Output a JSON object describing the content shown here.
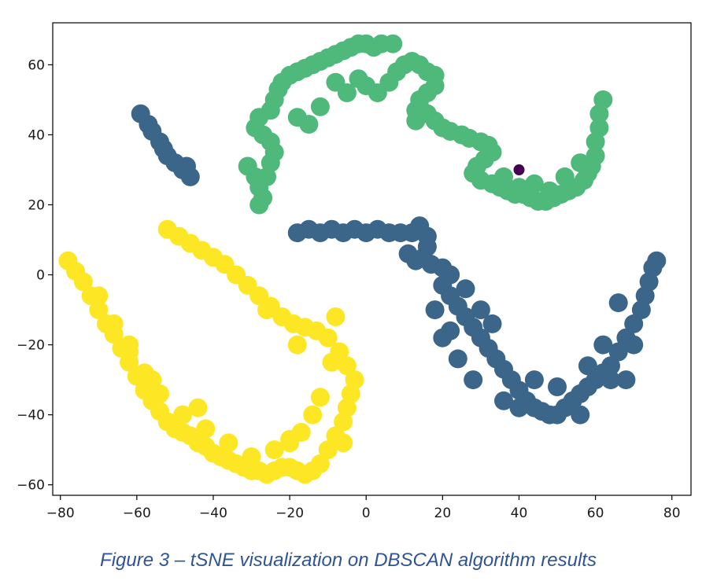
{
  "caption": "Figure 3 – tSNE visualization on DBSCAN algorithm results",
  "chart_data": {
    "type": "scatter",
    "title": "",
    "xlabel": "",
    "ylabel": "",
    "xlim": [
      -82,
      85
    ],
    "ylim": [
      -63,
      72
    ],
    "xticks": [
      -80,
      -60,
      -40,
      -20,
      0,
      20,
      40,
      60,
      80
    ],
    "yticks": [
      -60,
      -40,
      -20,
      0,
      20,
      40,
      60
    ],
    "grid": false,
    "legend": "none",
    "series": [
      {
        "color": "#fde725",
        "points": [
          [
            -78,
            4
          ],
          [
            -76,
            1
          ],
          [
            -74,
            -2
          ],
          [
            -72,
            -6
          ],
          [
            -70,
            -10
          ],
          [
            -68,
            -14
          ],
          [
            -66,
            -17
          ],
          [
            -64,
            -21
          ],
          [
            -62,
            -25
          ],
          [
            -60,
            -29
          ],
          [
            -58,
            -33
          ],
          [
            -56,
            -36
          ],
          [
            -54,
            -39
          ],
          [
            -52,
            -42
          ],
          [
            -50,
            -44
          ],
          [
            -48,
            -45
          ],
          [
            -46,
            -46
          ],
          [
            -44,
            -48
          ],
          [
            -42,
            -49
          ],
          [
            -40,
            -51
          ],
          [
            -38,
            -52
          ],
          [
            -36,
            -53
          ],
          [
            -34,
            -54
          ],
          [
            -32,
            -55
          ],
          [
            -30,
            -56
          ],
          [
            -28,
            -56
          ],
          [
            -26,
            -57
          ],
          [
            -24,
            -56
          ],
          [
            -22,
            -55
          ],
          [
            -20,
            -55
          ],
          [
            -18,
            -56
          ],
          [
            -16,
            -57
          ],
          [
            -14,
            -56
          ],
          [
            -12,
            -54
          ],
          [
            -10,
            -50
          ],
          [
            -8,
            -46
          ],
          [
            -6,
            -42
          ],
          [
            -5,
            -38
          ],
          [
            -4,
            -34
          ],
          [
            -3,
            -30
          ],
          [
            -5,
            -26
          ],
          [
            -7,
            -22
          ],
          [
            -10,
            -18
          ],
          [
            -13,
            -16
          ],
          [
            -16,
            -15
          ],
          [
            -19,
            -14
          ],
          [
            -22,
            -12
          ],
          [
            -25,
            -9
          ],
          [
            -28,
            -6
          ],
          [
            -31,
            -3
          ],
          [
            -34,
            0
          ],
          [
            -37,
            3
          ],
          [
            -40,
            5
          ],
          [
            -43,
            7
          ],
          [
            -46,
            9
          ],
          [
            -49,
            11
          ],
          [
            -52,
            13
          ],
          [
            -14,
            -40
          ],
          [
            -20,
            -48
          ],
          [
            -17,
            -45
          ],
          [
            -24,
            -50
          ],
          [
            -30,
            -52
          ],
          [
            -36,
            -48
          ],
          [
            -42,
            -44
          ],
          [
            -48,
            -40
          ],
          [
            -54,
            -34
          ],
          [
            -58,
            -28
          ],
          [
            -62,
            -22
          ],
          [
            -66,
            -14
          ],
          [
            -70,
            -6
          ],
          [
            -20,
            -47
          ],
          [
            -8,
            -12
          ],
          [
            -9,
            -25
          ],
          [
            -12,
            -35
          ],
          [
            -6,
            -48
          ],
          [
            -26,
            -10
          ],
          [
            -18,
            -20
          ],
          [
            -44,
            -38
          ],
          [
            -62,
            -20
          ],
          [
            -56,
            -30
          ]
        ]
      },
      {
        "color": "#3b668a",
        "points": [
          [
            -59,
            46
          ],
          [
            -57,
            43
          ],
          [
            -56,
            41
          ],
          [
            -54,
            38
          ],
          [
            -53,
            36
          ],
          [
            -52,
            34
          ],
          [
            -50,
            32
          ],
          [
            -48,
            30
          ],
          [
            -46,
            28
          ],
          [
            -47,
            31
          ],
          [
            -18,
            12
          ],
          [
            -15,
            13
          ],
          [
            -12,
            12
          ],
          [
            -9,
            13
          ],
          [
            -6,
            12
          ],
          [
            -3,
            13
          ],
          [
            0,
            12
          ],
          [
            3,
            13
          ],
          [
            6,
            12
          ],
          [
            9,
            12
          ],
          [
            12,
            12
          ],
          [
            14,
            14
          ],
          [
            16,
            11
          ],
          [
            16,
            8
          ],
          [
            15,
            5
          ],
          [
            13,
            4
          ],
          [
            11,
            6
          ],
          [
            17,
            3
          ],
          [
            20,
            2
          ],
          [
            22,
            0
          ],
          [
            20,
            -3
          ],
          [
            22,
            -6
          ],
          [
            24,
            -9
          ],
          [
            26,
            -12
          ],
          [
            28,
            -15
          ],
          [
            30,
            -18
          ],
          [
            32,
            -21
          ],
          [
            34,
            -24
          ],
          [
            36,
            -27
          ],
          [
            38,
            -30
          ],
          [
            40,
            -33
          ],
          [
            42,
            -36
          ],
          [
            44,
            -38
          ],
          [
            46,
            -39
          ],
          [
            48,
            -40
          ],
          [
            50,
            -40
          ],
          [
            52,
            -38
          ],
          [
            54,
            -36
          ],
          [
            56,
            -34
          ],
          [
            58,
            -32
          ],
          [
            60,
            -30
          ],
          [
            62,
            -28
          ],
          [
            64,
            -26
          ],
          [
            66,
            -22
          ],
          [
            68,
            -18
          ],
          [
            70,
            -14
          ],
          [
            72,
            -10
          ],
          [
            73,
            -6
          ],
          [
            74,
            -2
          ],
          [
            75,
            2
          ],
          [
            76,
            4
          ],
          [
            68,
            -30
          ],
          [
            64,
            -30
          ],
          [
            58,
            -26
          ],
          [
            50,
            -32
          ],
          [
            44,
            -30
          ],
          [
            36,
            -36
          ],
          [
            28,
            -30
          ],
          [
            24,
            -24
          ],
          [
            20,
            -18
          ],
          [
            18,
            -10
          ],
          [
            22,
            -16
          ],
          [
            30,
            -10
          ],
          [
            33,
            -14
          ],
          [
            26,
            -4
          ],
          [
            40,
            -38
          ],
          [
            56,
            -40
          ],
          [
            62,
            -20
          ],
          [
            70,
            -20
          ],
          [
            66,
            -8
          ]
        ]
      },
      {
        "color": "#4fb87b",
        "points": [
          [
            -31,
            31
          ],
          [
            -29,
            28
          ],
          [
            -28,
            25
          ],
          [
            -27,
            22
          ],
          [
            -28,
            20
          ],
          [
            -26,
            28
          ],
          [
            -25,
            32
          ],
          [
            -24,
            35
          ],
          [
            -25,
            38
          ],
          [
            -27,
            40
          ],
          [
            -29,
            42
          ],
          [
            -28,
            45
          ],
          [
            -25,
            47
          ],
          [
            -24,
            50
          ],
          [
            -23,
            53
          ],
          [
            -22,
            55
          ],
          [
            -20,
            57
          ],
          [
            -18,
            58
          ],
          [
            -16,
            59
          ],
          [
            -14,
            60
          ],
          [
            -12,
            61
          ],
          [
            -10,
            62
          ],
          [
            -8,
            63
          ],
          [
            -6,
            64
          ],
          [
            -4,
            65
          ],
          [
            -2,
            66
          ],
          [
            0,
            66
          ],
          [
            2,
            65
          ],
          [
            4,
            66
          ],
          [
            7,
            66
          ],
          [
            -8,
            55
          ],
          [
            -5,
            52
          ],
          [
            -2,
            56
          ],
          [
            0,
            54
          ],
          [
            3,
            52
          ],
          [
            6,
            55
          ],
          [
            8,
            58
          ],
          [
            10,
            60
          ],
          [
            12,
            61
          ],
          [
            14,
            60
          ],
          [
            16,
            58
          ],
          [
            18,
            57
          ],
          [
            18,
            54
          ],
          [
            16,
            52
          ],
          [
            14,
            50
          ],
          [
            13,
            47
          ],
          [
            13,
            44
          ],
          [
            14,
            48
          ],
          [
            16,
            46
          ],
          [
            18,
            44
          ],
          [
            20,
            42
          ],
          [
            22,
            41
          ],
          [
            25,
            40
          ],
          [
            27,
            39
          ],
          [
            30,
            38
          ],
          [
            32,
            37
          ],
          [
            33,
            35
          ],
          [
            31,
            33
          ],
          [
            29,
            31
          ],
          [
            28,
            29
          ],
          [
            30,
            27
          ],
          [
            33,
            26
          ],
          [
            35,
            25
          ],
          [
            37,
            24
          ],
          [
            39,
            23
          ],
          [
            41,
            23
          ],
          [
            43,
            22
          ],
          [
            45,
            21
          ],
          [
            47,
            21
          ],
          [
            49,
            22
          ],
          [
            51,
            23
          ],
          [
            53,
            24
          ],
          [
            55,
            25
          ],
          [
            57,
            27
          ],
          [
            58,
            29
          ],
          [
            59,
            31
          ],
          [
            60,
            34
          ],
          [
            60,
            38
          ],
          [
            61,
            42
          ],
          [
            61,
            46
          ],
          [
            62,
            50
          ],
          [
            -15,
            43
          ],
          [
            -12,
            48
          ],
          [
            -18,
            45
          ],
          [
            36,
            28
          ],
          [
            40,
            25
          ],
          [
            52,
            28
          ],
          [
            56,
            32
          ],
          [
            44,
            26
          ],
          [
            48,
            24
          ]
        ]
      },
      {
        "color": "#440154",
        "points": [
          [
            40,
            30
          ]
        ]
      }
    ]
  }
}
